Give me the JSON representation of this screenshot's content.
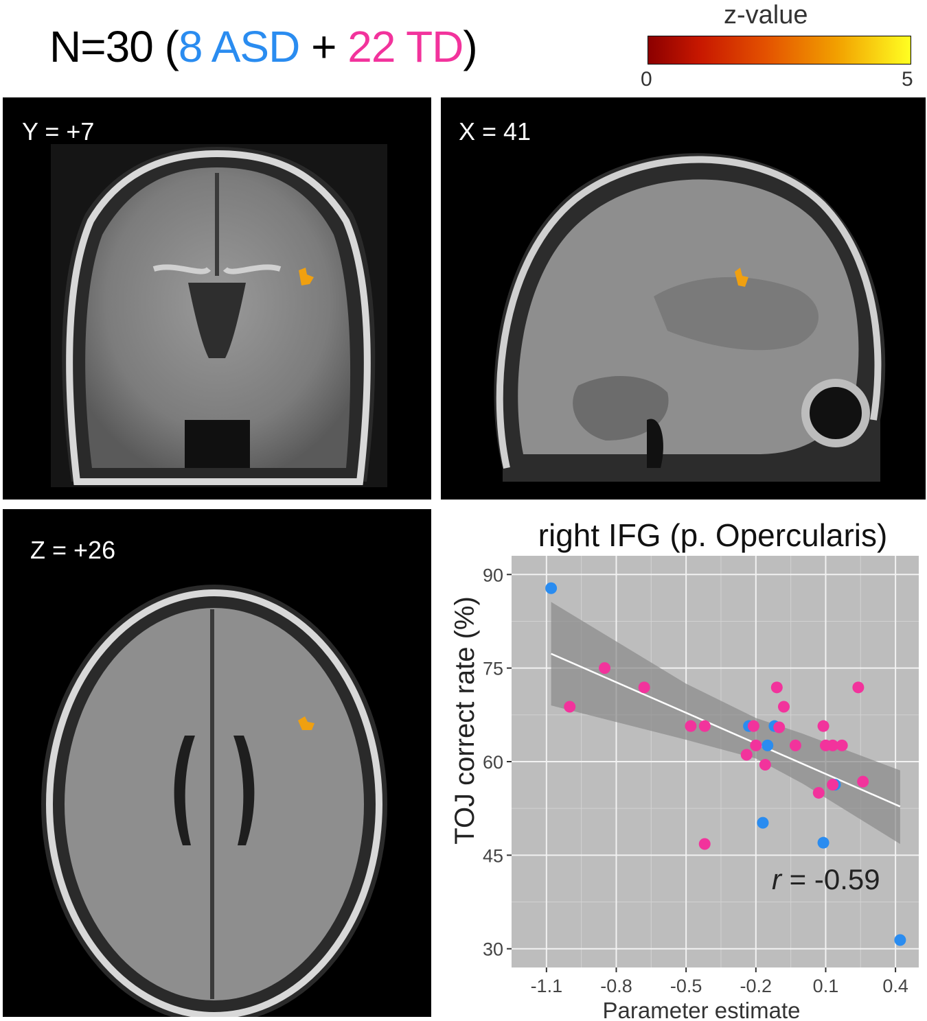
{
  "header": {
    "n_text": "N=30 (",
    "asd_text": "8 ASD",
    "plus_text": " + ",
    "td_text": "22 TD",
    "close_text": ")",
    "asd_color": "#2a8cf0",
    "td_color": "#f2339c"
  },
  "colorbar": {
    "label": "z-value",
    "min_label": "0",
    "max_label": "5"
  },
  "panels": {
    "coronal": {
      "label": "Y = +7"
    },
    "sagittal": {
      "label": "X = 41"
    },
    "axial": {
      "label": "Z = +26"
    }
  },
  "chart_data": {
    "type": "scatter",
    "title": "right IFG (p. Opercularis)",
    "xlabel": "Parameter estimate",
    "ylabel": "TOJ correct rate (%)",
    "xlim": [
      -1.25,
      0.5
    ],
    "ylim": [
      27,
      93
    ],
    "xticks": [
      "-1.1",
      "-0.8",
      "-0.5",
      "-0.2",
      "0.1",
      "0.4"
    ],
    "xtick_values": [
      -1.1,
      -0.8,
      -0.5,
      -0.2,
      0.1,
      0.4
    ],
    "yticks": [
      "30",
      "45",
      "60",
      "75",
      "90"
    ],
    "ytick_values": [
      30,
      45,
      60,
      75,
      90
    ],
    "grid": true,
    "background": "#bdbdbd",
    "annotation": {
      "r_symbol": "r",
      "r_value": " = -0.59"
    },
    "regression": {
      "x": [
        -1.08,
        0.42
      ],
      "y": [
        77.3,
        52.8
      ]
    },
    "confidence_band": {
      "x": [
        -1.08,
        -0.5,
        -0.2,
        0.0,
        0.42
      ],
      "upper": [
        85.6,
        72.5,
        67.0,
        64.5,
        58.6
      ],
      "lower": [
        69.0,
        63.5,
        60.5,
        56.5,
        46.8
      ]
    },
    "series": [
      {
        "name": "ASD",
        "color": "#2a8cf0",
        "points": [
          [
            -1.08,
            87.8
          ],
          [
            -0.23,
            65.7
          ],
          [
            -0.15,
            62.6
          ],
          [
            -0.12,
            65.7
          ],
          [
            -0.17,
            50.2
          ],
          [
            0.09,
            47.0
          ],
          [
            0.14,
            56.3
          ],
          [
            0.42,
            31.4
          ]
        ]
      },
      {
        "name": "TD",
        "color": "#f2339c",
        "points": [
          [
            -1.0,
            68.8
          ],
          [
            -0.85,
            75.0
          ],
          [
            -0.68,
            71.9
          ],
          [
            -0.48,
            65.7
          ],
          [
            -0.42,
            65.7
          ],
          [
            -0.21,
            65.7
          ],
          [
            -0.2,
            62.6
          ],
          [
            -0.24,
            61.1
          ],
          [
            -0.16,
            59.5
          ],
          [
            -0.11,
            71.9
          ],
          [
            -0.08,
            68.8
          ],
          [
            -0.1,
            65.5
          ],
          [
            -0.03,
            62.6
          ],
          [
            0.09,
            65.7
          ],
          [
            0.1,
            62.6
          ],
          [
            0.13,
            62.6
          ],
          [
            0.17,
            62.6
          ],
          [
            0.13,
            56.3
          ],
          [
            0.07,
            55.0
          ],
          [
            0.24,
            71.9
          ],
          [
            0.26,
            56.8
          ],
          [
            -0.42,
            46.8
          ]
        ]
      }
    ]
  }
}
